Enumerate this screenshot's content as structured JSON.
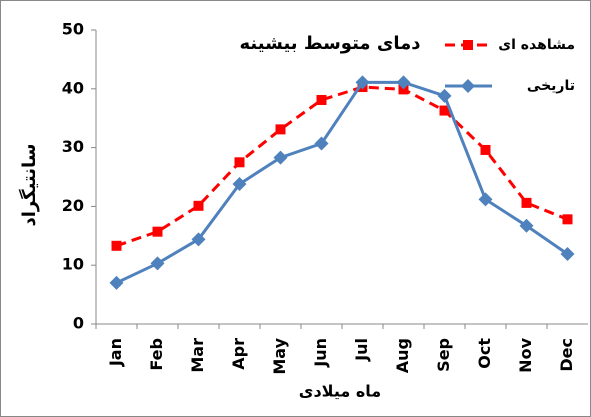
{
  "chart_data": {
    "type": "line",
    "title": "دمای متوسط بیشینه",
    "x_label": "ماه میلادی",
    "y_label": "سانتیگراد",
    "categories": [
      "Jan",
      "Feb",
      "Mar",
      "Apr",
      "May",
      "Jun",
      "Jul",
      "Aug",
      "Sep",
      "Oct",
      "Nov",
      "Dec"
    ],
    "series": [
      {
        "name": "مشاهده ای",
        "color": "#ff0000",
        "dashed": true,
        "marker": "square",
        "values": [
          13.3,
          15.7,
          20.1,
          27.5,
          33.1,
          38.1,
          40.3,
          39.9,
          36.3,
          29.6,
          20.6,
          17.8
        ]
      },
      {
        "name": "تاریخی",
        "color": "#4f81bd",
        "dashed": false,
        "marker": "diamond",
        "values": [
          7,
          10.3,
          14.4,
          23.8,
          28.3,
          30.7,
          41.1,
          41.1,
          38.8,
          21.2,
          16.7,
          11.9
        ]
      }
    ],
    "ylim": [
      0,
      50
    ],
    "yticks": [
      0,
      10,
      20,
      30,
      40,
      50
    ],
    "grid": false,
    "legend": "upper right"
  }
}
